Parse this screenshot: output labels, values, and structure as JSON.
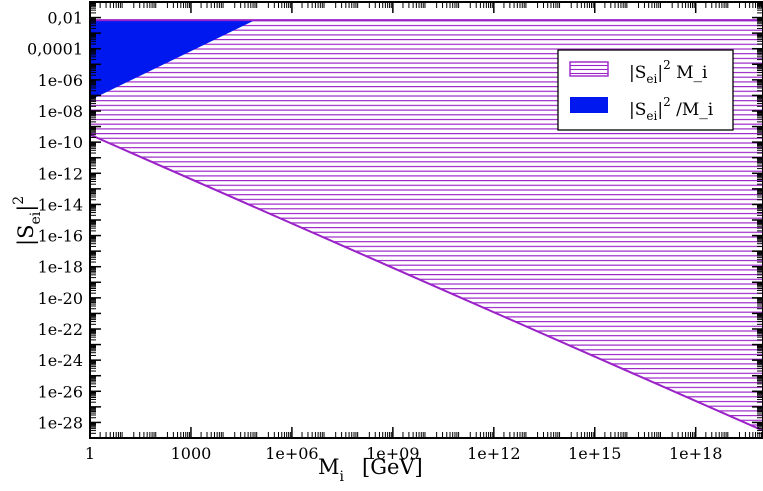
{
  "chart_data": {
    "type": "area",
    "xscale": "log",
    "yscale": "log",
    "xlim": [
      1,
      1e+20
    ],
    "ylim": [
      1e-29,
      0.1
    ],
    "x_ticks": [
      {
        "value": 1,
        "label": "1"
      },
      {
        "value": 1000,
        "label": "1000"
      },
      {
        "value": 1000000.0,
        "label": "1e+06"
      },
      {
        "value": 1000000000.0,
        "label": "1e+09"
      },
      {
        "value": 1000000000000.0,
        "label": "1e+12"
      },
      {
        "value": 1000000000000000.0,
        "label": "1e+15"
      },
      {
        "value": 1e+18,
        "label": "1e+18"
      }
    ],
    "y_ticks": [
      {
        "value": 0.01,
        "label": "0,01"
      },
      {
        "value": 0.0001,
        "label": "0,0001"
      },
      {
        "value": 1e-06,
        "label": "1e-06"
      },
      {
        "value": 1e-08,
        "label": "1e-08"
      },
      {
        "value": 1e-10,
        "label": "1e-10"
      },
      {
        "value": 1e-12,
        "label": "1e-12"
      },
      {
        "value": 1e-14,
        "label": "1e-14"
      },
      {
        "value": 1e-16,
        "label": "1e-16"
      },
      {
        "value": 1e-18,
        "label": "1e-18"
      },
      {
        "value": 1e-20,
        "label": "1e-20"
      },
      {
        "value": 1e-22,
        "label": "1e-22"
      },
      {
        "value": 1e-24,
        "label": "1e-24"
      },
      {
        "value": 1e-26,
        "label": "1e-26"
      },
      {
        "value": 1e-28,
        "label": "1e-28"
      }
    ],
    "xlabel": {
      "main": "M",
      "sub": "i",
      "unit": "[GeV]"
    },
    "ylabel": {
      "pre": "|S",
      "sub": "ei",
      "post": "|",
      "sup": "2"
    },
    "series": [
      {
        "name": "|S_ei|^2 M_i",
        "legend": {
          "pre": "|S",
          "sub": "ei",
          "post": "|",
          "sup": "2",
          "tail": " M_i"
        },
        "fill": "hatched",
        "color": "#9a22c8",
        "boundary": [
          {
            "x": 1,
            "y": 3e-10
          },
          {
            "x": 1e+20,
            "y": 3e-29
          }
        ],
        "upper": 0.0069
      },
      {
        "name": "|S_ei|^2/M_i",
        "legend": {
          "pre": "|S",
          "sub": "ei",
          "post": "|",
          "sup": "2",
          "tail": " /M_i"
        },
        "fill": "solid",
        "color": "#0018f0",
        "boundary": [
          {
            "x": 1,
            "y": 5e-08
          },
          {
            "x": 80000.0,
            "y": 0.0069
          }
        ],
        "upper": 0.0069
      }
    ],
    "legend_position": "top-right",
    "grid": false
  }
}
